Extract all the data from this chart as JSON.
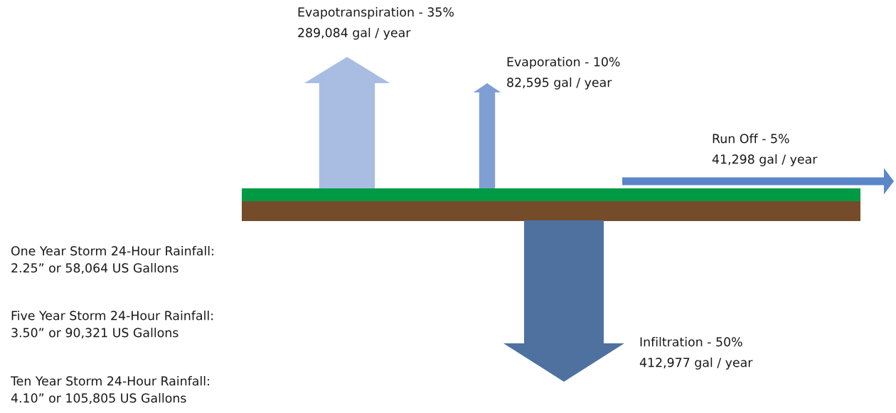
{
  "chart_data": {
    "type": "other",
    "categories": [
      "Evapotranspiration - 35%",
      "Evaporation - 10%",
      "Run Off - 5%",
      "Infiltration - 50%"
    ],
    "values": [
      289084,
      82595,
      41298,
      412977
    ],
    "value_labels": [
      "289,084 gal / year",
      "82,595 gal / year",
      "41,298 gal / year",
      "412,977 gal / year"
    ],
    "colors": [
      "#a9bde3",
      "#7f9fd4",
      "#5b87c9",
      "#4e71a0"
    ],
    "annotations": [
      "One Year Storm 24-Hour Rainfall:\n2.25” or 58,064 US Gallons",
      "Five Year Storm 24-Hour Rainfall:\n3.50” or 90,321 US Gallons",
      "Ten Year Storm 24-Hour Rainfall:\n4.10” or 105,805 US Gallons"
    ]
  }
}
